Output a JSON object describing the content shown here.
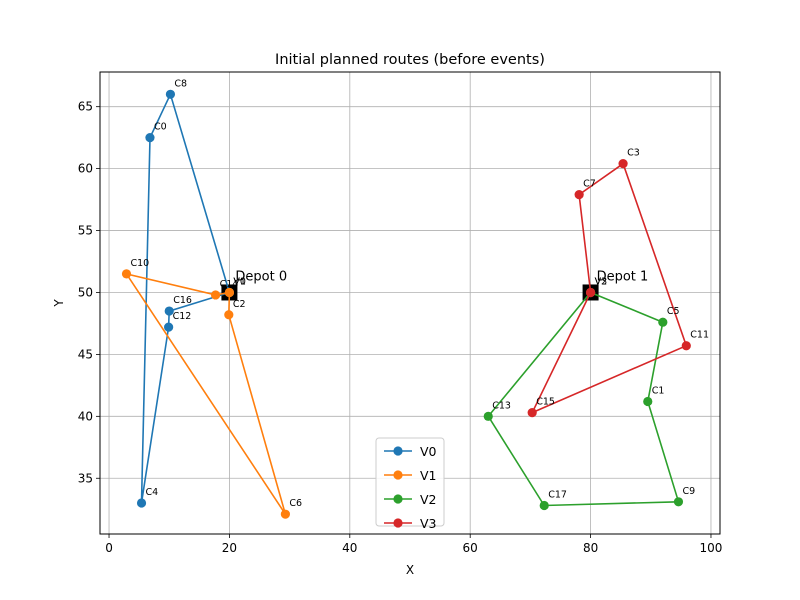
{
  "chart_data": {
    "type": "line",
    "title": "Initial planned routes (before events)",
    "xlabel": "X",
    "ylabel": "Y",
    "xlim": [
      -1.5,
      101.5
    ],
    "ylim": [
      30.5,
      67.8
    ],
    "xticks": [
      0,
      20,
      40,
      60,
      80,
      100
    ],
    "yticks": [
      35,
      40,
      45,
      50,
      55,
      60,
      65
    ],
    "grid": true,
    "legend_position": "bottom-center",
    "colors": {
      "V0": "#1f77b4",
      "V1": "#ff7f0e",
      "V2": "#2ca02c",
      "V3": "#d62728",
      "depot": "#000000"
    },
    "depots": [
      {
        "label": "Depot 0",
        "x": 20,
        "y": 50
      },
      {
        "label": "Depot 1",
        "x": 80,
        "y": 50
      }
    ],
    "series": [
      {
        "name": "V0",
        "points": [
          {
            "x": 20,
            "y": 50
          },
          {
            "x": 10.2,
            "y": 66.0
          },
          {
            "x": 6.8,
            "y": 62.5
          },
          {
            "x": 5.4,
            "y": 33.0
          },
          {
            "x": 9.9,
            "y": 47.2
          },
          {
            "x": 10.0,
            "y": 48.5
          },
          {
            "x": 20,
            "y": 50
          }
        ]
      },
      {
        "name": "V1",
        "points": [
          {
            "x": 20,
            "y": 50
          },
          {
            "x": 19.9,
            "y": 48.2
          },
          {
            "x": 29.3,
            "y": 32.1
          },
          {
            "x": 2.9,
            "y": 51.5
          },
          {
            "x": 17.7,
            "y": 49.8
          },
          {
            "x": 20,
            "y": 50
          }
        ]
      },
      {
        "name": "V2",
        "points": [
          {
            "x": 80,
            "y": 50
          },
          {
            "x": 63.0,
            "y": 40.0
          },
          {
            "x": 72.3,
            "y": 32.8
          },
          {
            "x": 94.6,
            "y": 33.1
          },
          {
            "x": 89.5,
            "y": 41.2
          },
          {
            "x": 92.0,
            "y": 47.6
          },
          {
            "x": 80,
            "y": 50
          }
        ]
      },
      {
        "name": "V3",
        "points": [
          {
            "x": 80,
            "y": 50
          },
          {
            "x": 78.1,
            "y": 57.9
          },
          {
            "x": 85.4,
            "y": 60.4
          },
          {
            "x": 95.9,
            "y": 45.7
          },
          {
            "x": 70.3,
            "y": 40.3
          },
          {
            "x": 80,
            "y": 50
          }
        ]
      }
    ],
    "point_labels": [
      {
        "text": "C8",
        "x": 10.2,
        "y": 66.0
      },
      {
        "text": "C0",
        "x": 6.8,
        "y": 62.5
      },
      {
        "text": "C10",
        "x": 2.9,
        "y": 51.5
      },
      {
        "text": "C16",
        "x": 10.0,
        "y": 48.5
      },
      {
        "text": "C12",
        "x": 9.9,
        "y": 47.2
      },
      {
        "text": "C4",
        "x": 5.4,
        "y": 33.0
      },
      {
        "text": "C14",
        "x": 17.7,
        "y": 49.8
      },
      {
        "text": "V0",
        "x": 20,
        "y": 50
      },
      {
        "text": "V1",
        "x": 20,
        "y": 50
      },
      {
        "text": "C2",
        "x": 19.9,
        "y": 48.2
      },
      {
        "text": "C6",
        "x": 29.3,
        "y": 32.1
      },
      {
        "text": "C3",
        "x": 85.4,
        "y": 60.4
      },
      {
        "text": "C7",
        "x": 78.1,
        "y": 57.9
      },
      {
        "text": "V2",
        "x": 80,
        "y": 50
      },
      {
        "text": "V3",
        "x": 80,
        "y": 50
      },
      {
        "text": "C5",
        "x": 92.0,
        "y": 47.6
      },
      {
        "text": "C11",
        "x": 95.9,
        "y": 45.7
      },
      {
        "text": "C1",
        "x": 89.5,
        "y": 41.2
      },
      {
        "text": "C15",
        "x": 70.3,
        "y": 40.3
      },
      {
        "text": "C13",
        "x": 63.0,
        "y": 40.0
      },
      {
        "text": "C17",
        "x": 72.3,
        "y": 32.8
      },
      {
        "text": "C9",
        "x": 94.6,
        "y": 33.1
      }
    ]
  }
}
